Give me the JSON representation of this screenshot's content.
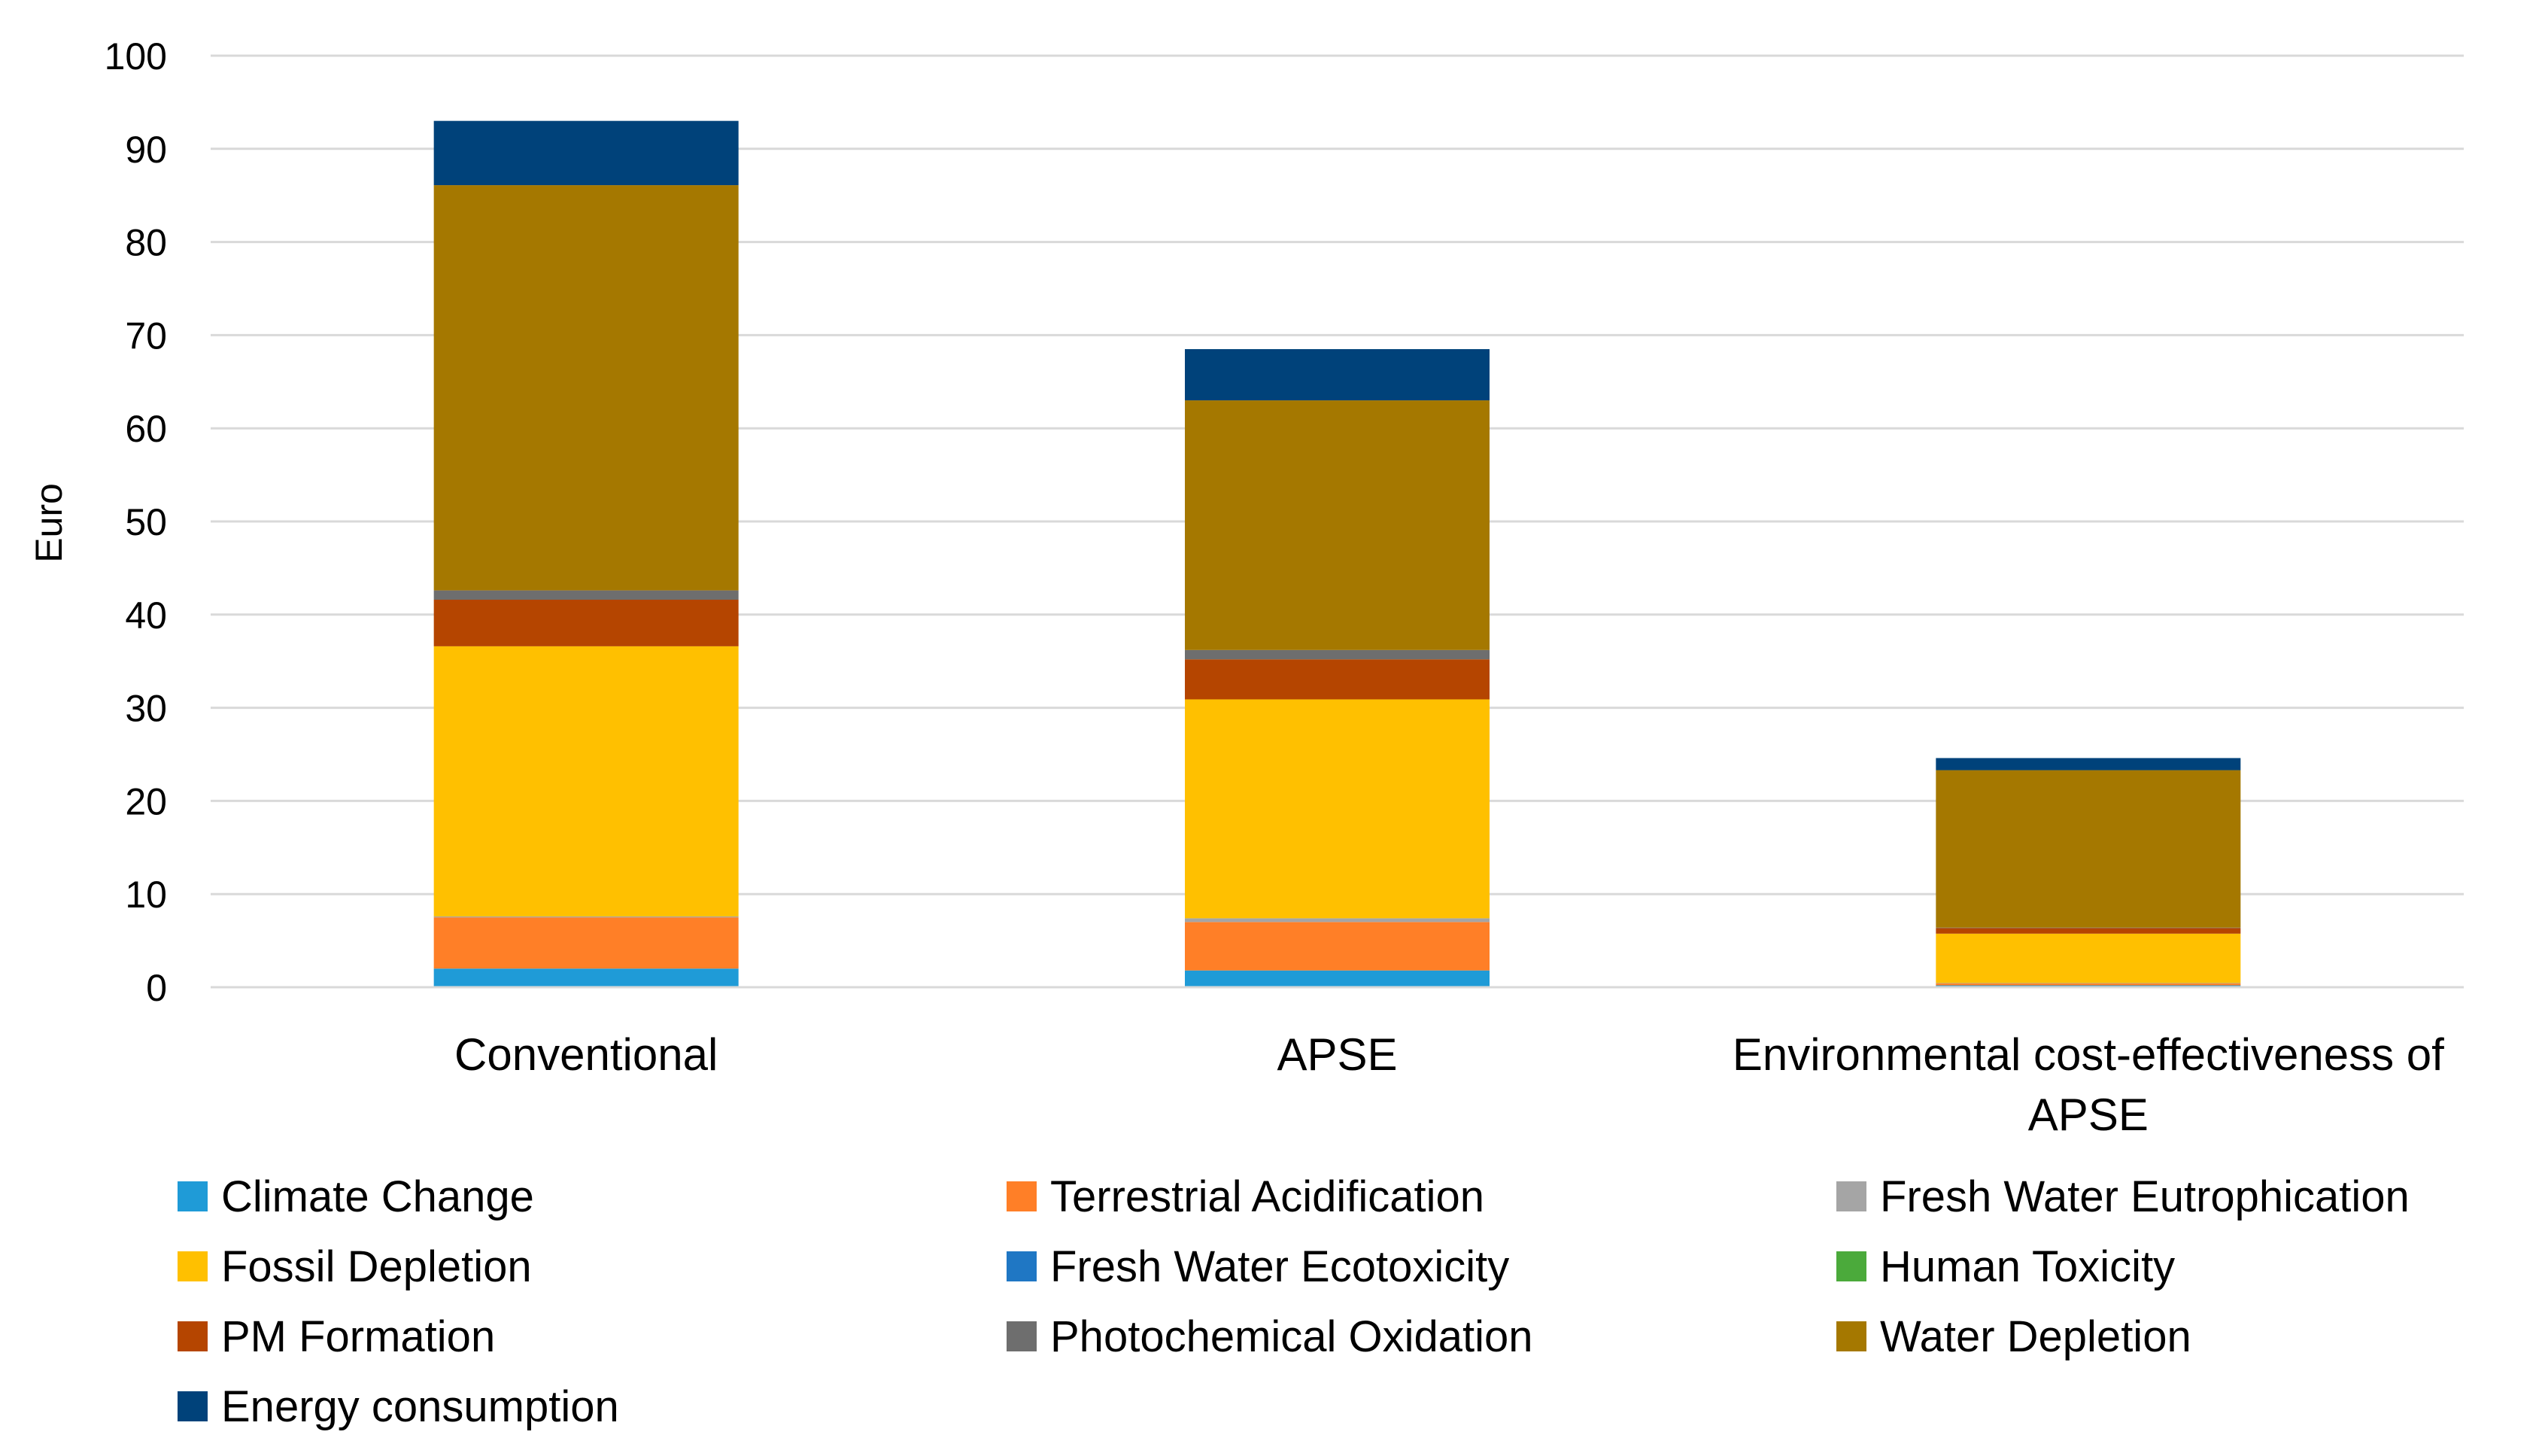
{
  "chart_data": {
    "type": "bar",
    "stacked": true,
    "title": "",
    "xlabel": "",
    "ylabel": "Euro",
    "ylim": [
      0,
      100
    ],
    "yticks": [
      0,
      10,
      20,
      30,
      40,
      50,
      60,
      70,
      80,
      90,
      100
    ],
    "grid": true,
    "legend_position": "bottom",
    "categories": [
      {
        "lines": [
          "Conventional"
        ]
      },
      {
        "lines": [
          "APSE"
        ]
      },
      {
        "lines": [
          "Environmental cost-effectiveness of",
          "APSE"
        ]
      }
    ],
    "series": [
      {
        "name": "Climate Change",
        "color": "#1F9BD7",
        "values": [
          2.0,
          1.8,
          0.2
        ]
      },
      {
        "name": "Terrestrial Acidification",
        "color": "#FF7F27",
        "values": [
          5.5,
          5.2,
          0.2
        ]
      },
      {
        "name": "Fresh Water Eutrophication",
        "color": "#A5A5A5",
        "values": [
          0.1,
          0.4,
          0.05
        ]
      },
      {
        "name": "Fossil Depletion",
        "color": "#FFC000",
        "values": [
          29.0,
          23.5,
          5.3
        ]
      },
      {
        "name": "Fresh Water Ecotoxicity",
        "color": "#1F77C4",
        "values": [
          0.0,
          0.0,
          0.0
        ]
      },
      {
        "name": "Human Toxicity",
        "color": "#4BAA3B",
        "values": [
          0.0,
          0.0,
          0.0
        ]
      },
      {
        "name": "PM Formation",
        "color": "#B54500",
        "values": [
          5.0,
          4.3,
          0.6
        ]
      },
      {
        "name": "Photochemical Oxidation",
        "color": "#6E6E6E",
        "values": [
          1.0,
          1.0,
          0.05
        ]
      },
      {
        "name": "Water Depletion",
        "color": "#A57800",
        "values": [
          43.5,
          26.8,
          16.9
        ]
      },
      {
        "name": "Energy consumption",
        "color": "#00427A",
        "values": [
          6.9,
          5.5,
          1.3
        ]
      }
    ],
    "colors": {
      "gridline": "#D9D9D9",
      "axis": "#D9D9D9"
    }
  }
}
